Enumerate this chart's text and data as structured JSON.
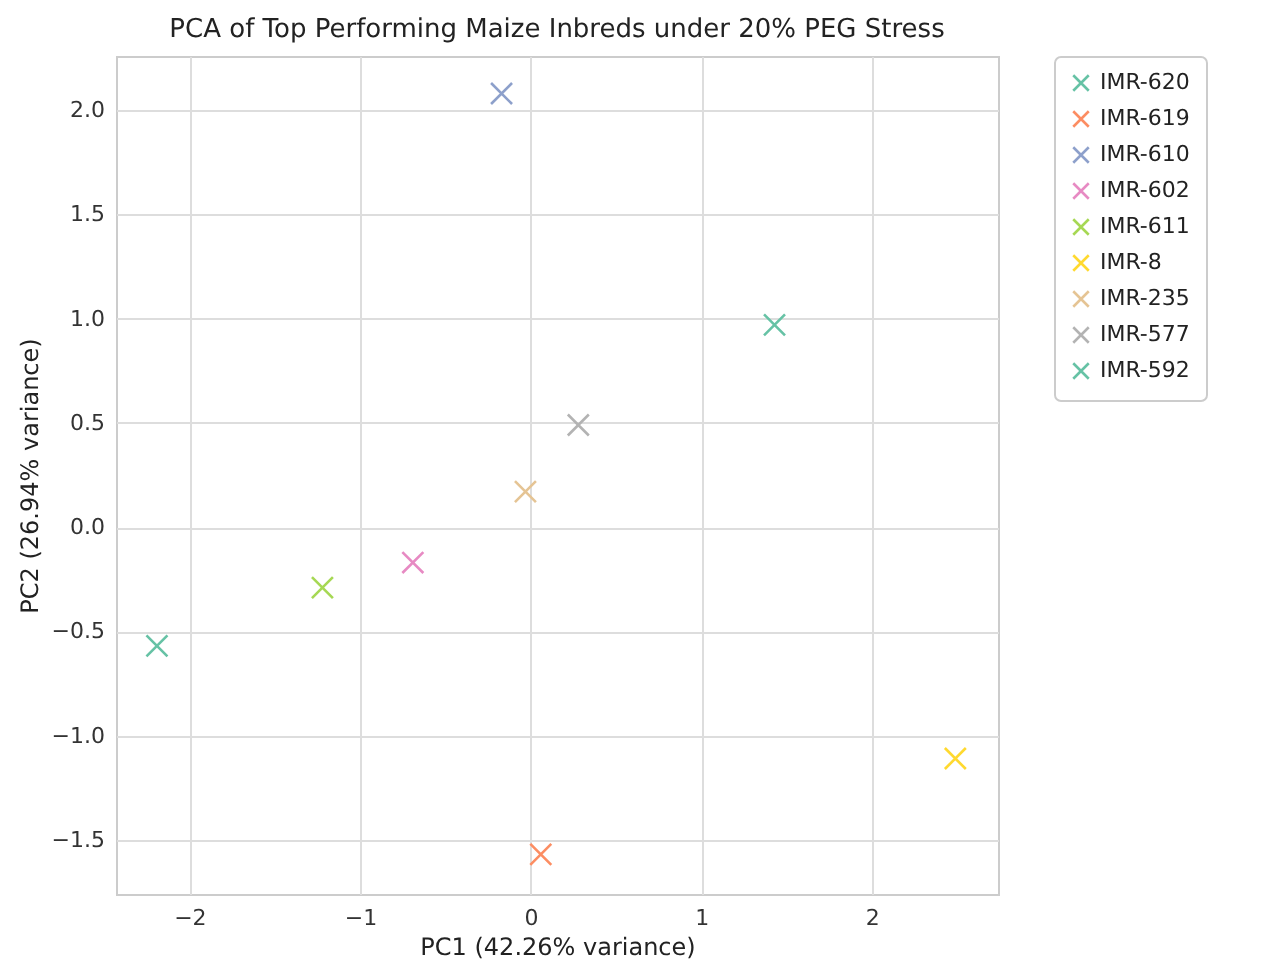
{
  "chart_data": {
    "type": "scatter",
    "title": "PCA of Top Performing Maize Inbreds under 20% PEG Stress",
    "xlabel": "PC1 (42.26% variance)",
    "ylabel": "PC2 (26.94% variance)",
    "xlim": [
      -2.43,
      2.74
    ],
    "xticks": [
      -2,
      -1,
      0,
      1,
      2
    ],
    "ylim": [
      -1.76,
      2.26
    ],
    "yticks": [
      -1.5,
      {
        "value": -1,
        "label": "−1.0"
      },
      -0.5,
      {
        "value": 0,
        "label": "0.0"
      },
      0.5,
      {
        "value": 1,
        "label": "1.0"
      },
      1.5,
      {
        "value": 2,
        "label": "2.0"
      }
    ],
    "grid": true,
    "legend": "top right",
    "marker": "cross",
    "series": [
      {
        "name": "IMR-620",
        "color": "#66c2a5",
        "x": [
          1.43
        ],
        "values": [
          0.97
        ]
      },
      {
        "name": "IMR-619",
        "color": "#fc8d62",
        "x": [
          0.06
        ],
        "values": [
          -1.57
        ]
      },
      {
        "name": "IMR-610",
        "color": "#8da0cb",
        "x": [
          -0.17
        ],
        "values": [
          2.08
        ]
      },
      {
        "name": "IMR-602",
        "color": "#e78ac3",
        "x": [
          -0.69
        ],
        "values": [
          -0.17
        ]
      },
      {
        "name": "IMR-611",
        "color": "#a6d854",
        "x": [
          -1.22
        ],
        "values": [
          -0.29
        ]
      },
      {
        "name": "IMR-8",
        "color": "#ffd92f",
        "x": [
          2.49
        ],
        "values": [
          -1.11
        ]
      },
      {
        "name": "IMR-235",
        "color": "#e5c494",
        "x": [
          -0.03
        ],
        "values": [
          0.17
        ]
      },
      {
        "name": "IMR-577",
        "color": "#b3b3b3",
        "x": [
          0.28
        ],
        "values": [
          0.49
        ]
      },
      {
        "name": "IMR-592",
        "color": "#66c2a5",
        "x": [
          -2.19
        ],
        "values": [
          -0.57
        ]
      }
    ]
  }
}
